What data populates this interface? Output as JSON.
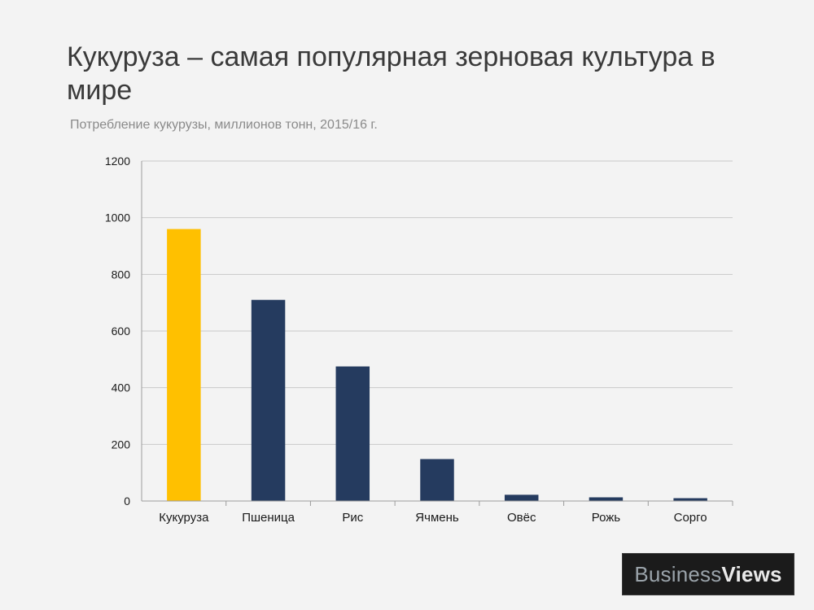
{
  "header": {
    "title": "Кукуруза – самая популярная зерновая культура в мире",
    "subtitle": "Потребление кукурузы, миллионов тонн, 2015/16 г."
  },
  "chart_data": {
    "type": "bar",
    "categories": [
      "Кукуруза",
      "Пшеница",
      "Рис",
      "Ячмень",
      "Овёс",
      "Рожь",
      "Сорго"
    ],
    "values": [
      960,
      710,
      475,
      148,
      22,
      13,
      10
    ],
    "ylim": [
      0,
      1200
    ],
    "yticks": [
      0,
      200,
      400,
      600,
      800,
      1000,
      1200
    ],
    "grid": true,
    "legend": "none",
    "colors": {
      "highlight": "#ffc000",
      "default": "#253b5f",
      "grid": "#c9c9c9",
      "axis": "#9c9c9c"
    },
    "highlight_index": 0
  },
  "logo": {
    "part1": "Business",
    "part2": "Views"
  }
}
